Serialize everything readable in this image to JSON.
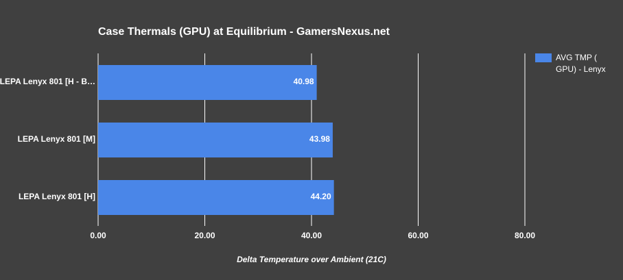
{
  "chart_data": {
    "type": "bar",
    "orientation": "horizontal",
    "title": "Case Thermals (GPU) at Equilibrium - GamersNexus.net",
    "x_label": "Delta Temperature over Ambient (21C)",
    "categories": [
      "LEPA Lenyx 801 [H - B…",
      "LEPA Lenyx 801 [M]",
      "LEPA Lenyx 801 [H]"
    ],
    "series": [
      {
        "name": "AVG TMP ( GPU) - Lenyx",
        "color": "#4a86e8",
        "values": [
          40.98,
          43.98,
          44.2
        ],
        "value_labels": [
          "40.98",
          "43.98",
          "44.20"
        ]
      }
    ],
    "xlim": [
      0,
      80
    ],
    "xticks": [
      {
        "value": 0,
        "label": "0.00"
      },
      {
        "value": 20,
        "label": "20.00"
      },
      {
        "value": 40,
        "label": "40.00"
      },
      {
        "value": 60,
        "label": "60.00"
      },
      {
        "value": 80,
        "label": "80.00"
      }
    ],
    "grid": true,
    "legend": "top-right"
  }
}
